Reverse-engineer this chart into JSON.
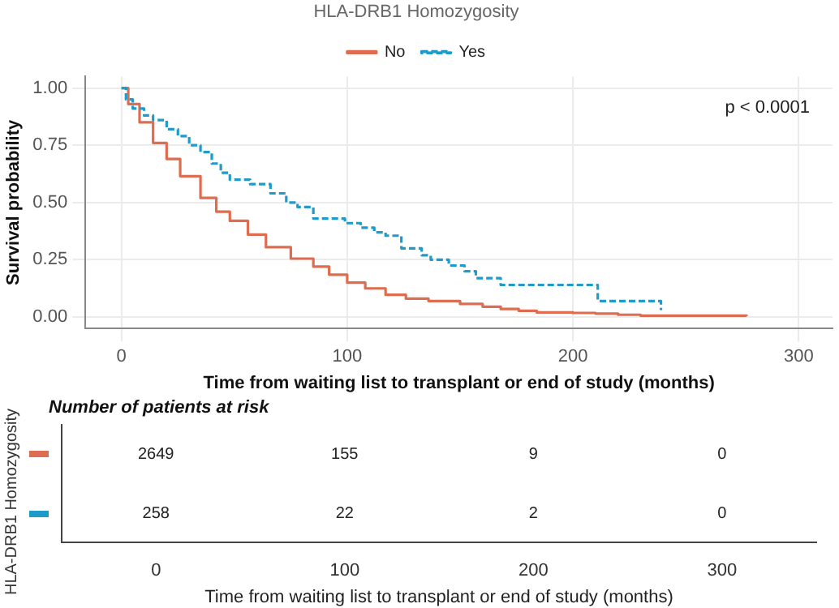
{
  "chart_data": [
    {
      "type": "step",
      "legend_title": "HLA-DRB1 Homozygosity",
      "legend": "top",
      "xlabel": "Time from waiting list to transplant or end of study (months)",
      "ylabel": "Survival probability",
      "xlim": [
        -16,
        315
      ],
      "xticks": [
        0,
        100,
        200,
        300
      ],
      "ylim": [
        -0.05,
        1.05
      ],
      "yticks": [
        {
          "value": 0,
          "label": "0.00"
        },
        {
          "value": 0.25,
          "label": "0.25"
        },
        {
          "value": 0.5,
          "label": "0.50"
        },
        {
          "value": 0.75,
          "label": "0.75"
        },
        {
          "value": 1,
          "label": "1.00"
        }
      ],
      "grid": true,
      "annotations": [
        "p < 0.0001"
      ],
      "series": [
        {
          "name": "No",
          "color": "#de6c50",
          "line_style": "solid",
          "x": [
            0,
            3,
            8,
            14,
            20,
            26,
            35,
            42,
            48,
            56,
            64,
            75,
            85,
            92,
            100,
            108,
            117,
            126,
            136,
            150,
            160,
            168,
            176,
            184,
            200,
            210,
            220,
            230,
            277
          ],
          "values": [
            1,
            0.93,
            0.85,
            0.76,
            0.69,
            0.615,
            0.52,
            0.46,
            0.42,
            0.36,
            0.305,
            0.255,
            0.22,
            0.185,
            0.15,
            0.125,
            0.097,
            0.08,
            0.07,
            0.057,
            0.045,
            0.035,
            0.027,
            0.02,
            0.018,
            0.015,
            0.01,
            0.006,
            0.005
          ]
        },
        {
          "name": "Yes",
          "color": "#1f9ac9",
          "line_style": "dashed",
          "x": [
            0,
            2,
            5,
            10,
            14,
            20,
            25,
            30,
            35,
            40,
            44,
            48,
            57,
            66,
            73,
            78,
            85,
            99,
            106,
            112,
            117,
            124,
            133,
            137,
            145,
            152,
            157,
            168,
            211,
            239
          ],
          "values": [
            1,
            0.95,
            0.91,
            0.88,
            0.86,
            0.82,
            0.79,
            0.75,
            0.72,
            0.67,
            0.63,
            0.6,
            0.58,
            0.54,
            0.5,
            0.48,
            0.43,
            0.41,
            0.39,
            0.37,
            0.355,
            0.3,
            0.27,
            0.25,
            0.225,
            0.2,
            0.17,
            0.14,
            0.07,
            0.03
          ]
        }
      ]
    },
    {
      "type": "heatmap",
      "title": "Number of patients at risk",
      "xlabel": "Time from waiting list to transplant or end of study (months)",
      "ylabel": "HLA-DRB1 Homozygosity",
      "categories": [
        "0",
        "100",
        "200",
        "300"
      ],
      "y_categories": [
        null,
        null
      ],
      "tick_labels": "x",
      "cells": [
        [
          2649,
          155,
          9,
          0
        ],
        [
          258,
          22,
          2,
          0
        ]
      ],
      "cell_labels": [
        [
          "2649",
          "155",
          "9",
          "0"
        ],
        [
          "258",
          "22",
          "2",
          "0"
        ]
      ]
    }
  ]
}
